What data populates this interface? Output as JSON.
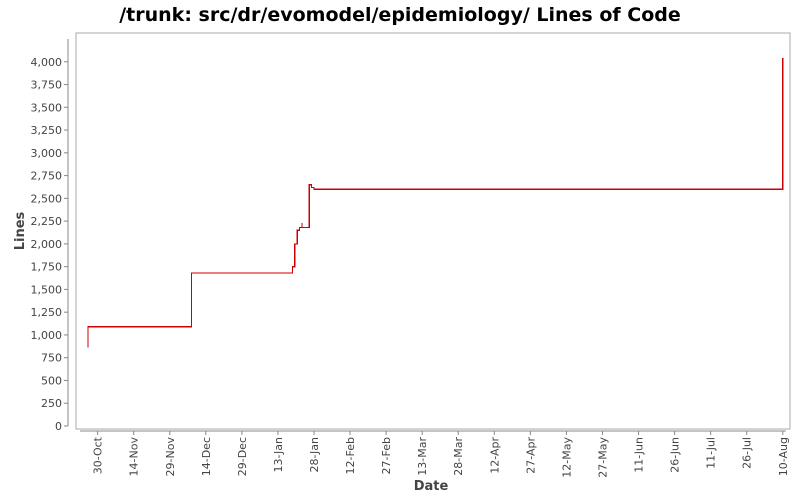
{
  "chart_data": {
    "type": "line",
    "title": "/trunk: src/dr/evomodel/epidemiology/ Lines of Code",
    "xlabel": "Date",
    "ylabel": "Lines",
    "ylim": [
      0,
      4250
    ],
    "xlim": [
      "2007-10-21",
      "2008-08-13"
    ],
    "y_ticks": [
      0,
      250,
      500,
      750,
      1000,
      1250,
      1500,
      1750,
      2000,
      2250,
      2500,
      2750,
      3000,
      3250,
      3500,
      3750,
      4000
    ],
    "y_tick_labels": [
      "0",
      "250",
      "500",
      "750",
      "1,000",
      "1,250",
      "1,500",
      "1,750",
      "2,000",
      "2,250",
      "2,500",
      "2,750",
      "3,000",
      "3,250",
      "3,500",
      "3,750",
      "4,000"
    ],
    "x_ticks": [
      "2007-10-30",
      "2007-11-14",
      "2007-11-29",
      "2007-12-14",
      "2007-12-29",
      "2008-01-13",
      "2008-01-28",
      "2008-02-12",
      "2008-02-27",
      "2008-03-13",
      "2008-03-28",
      "2008-04-12",
      "2008-04-27",
      "2008-05-12",
      "2008-05-27",
      "2008-06-11",
      "2008-06-26",
      "2008-07-11",
      "2008-07-26",
      "2008-08-10"
    ],
    "x_tick_labels": [
      "30-Oct",
      "14-Nov",
      "29-Nov",
      "14-Dec",
      "29-Dec",
      "13-Jan",
      "28-Jan",
      "12-Feb",
      "27-Feb",
      "13-Mar",
      "28-Mar",
      "12-Apr",
      "27-Apr",
      "12-May",
      "27-May",
      "11-Jun",
      "26-Jun",
      "11-Jul",
      "26-Jul",
      "10-Aug"
    ],
    "grid": false,
    "legend": "none",
    "line_color": "#cc0000",
    "series": [
      {
        "step": true,
        "points": [
          [
            "2007-10-26",
            860
          ],
          [
            "2007-10-26",
            1090
          ],
          [
            "2007-12-08",
            1680
          ],
          [
            "2008-01-19",
            1750
          ],
          [
            "2008-01-20",
            2000
          ],
          [
            "2008-01-21",
            2150
          ],
          [
            "2008-01-22",
            2180
          ],
          [
            "2008-01-23",
            2230
          ],
          [
            "2008-01-23",
            2180
          ],
          [
            "2008-01-26",
            2650
          ],
          [
            "2008-01-27",
            2620
          ],
          [
            "2008-01-28",
            2600
          ],
          [
            "2008-08-10",
            2590
          ],
          [
            "2008-08-10",
            4040
          ]
        ]
      }
    ]
  }
}
